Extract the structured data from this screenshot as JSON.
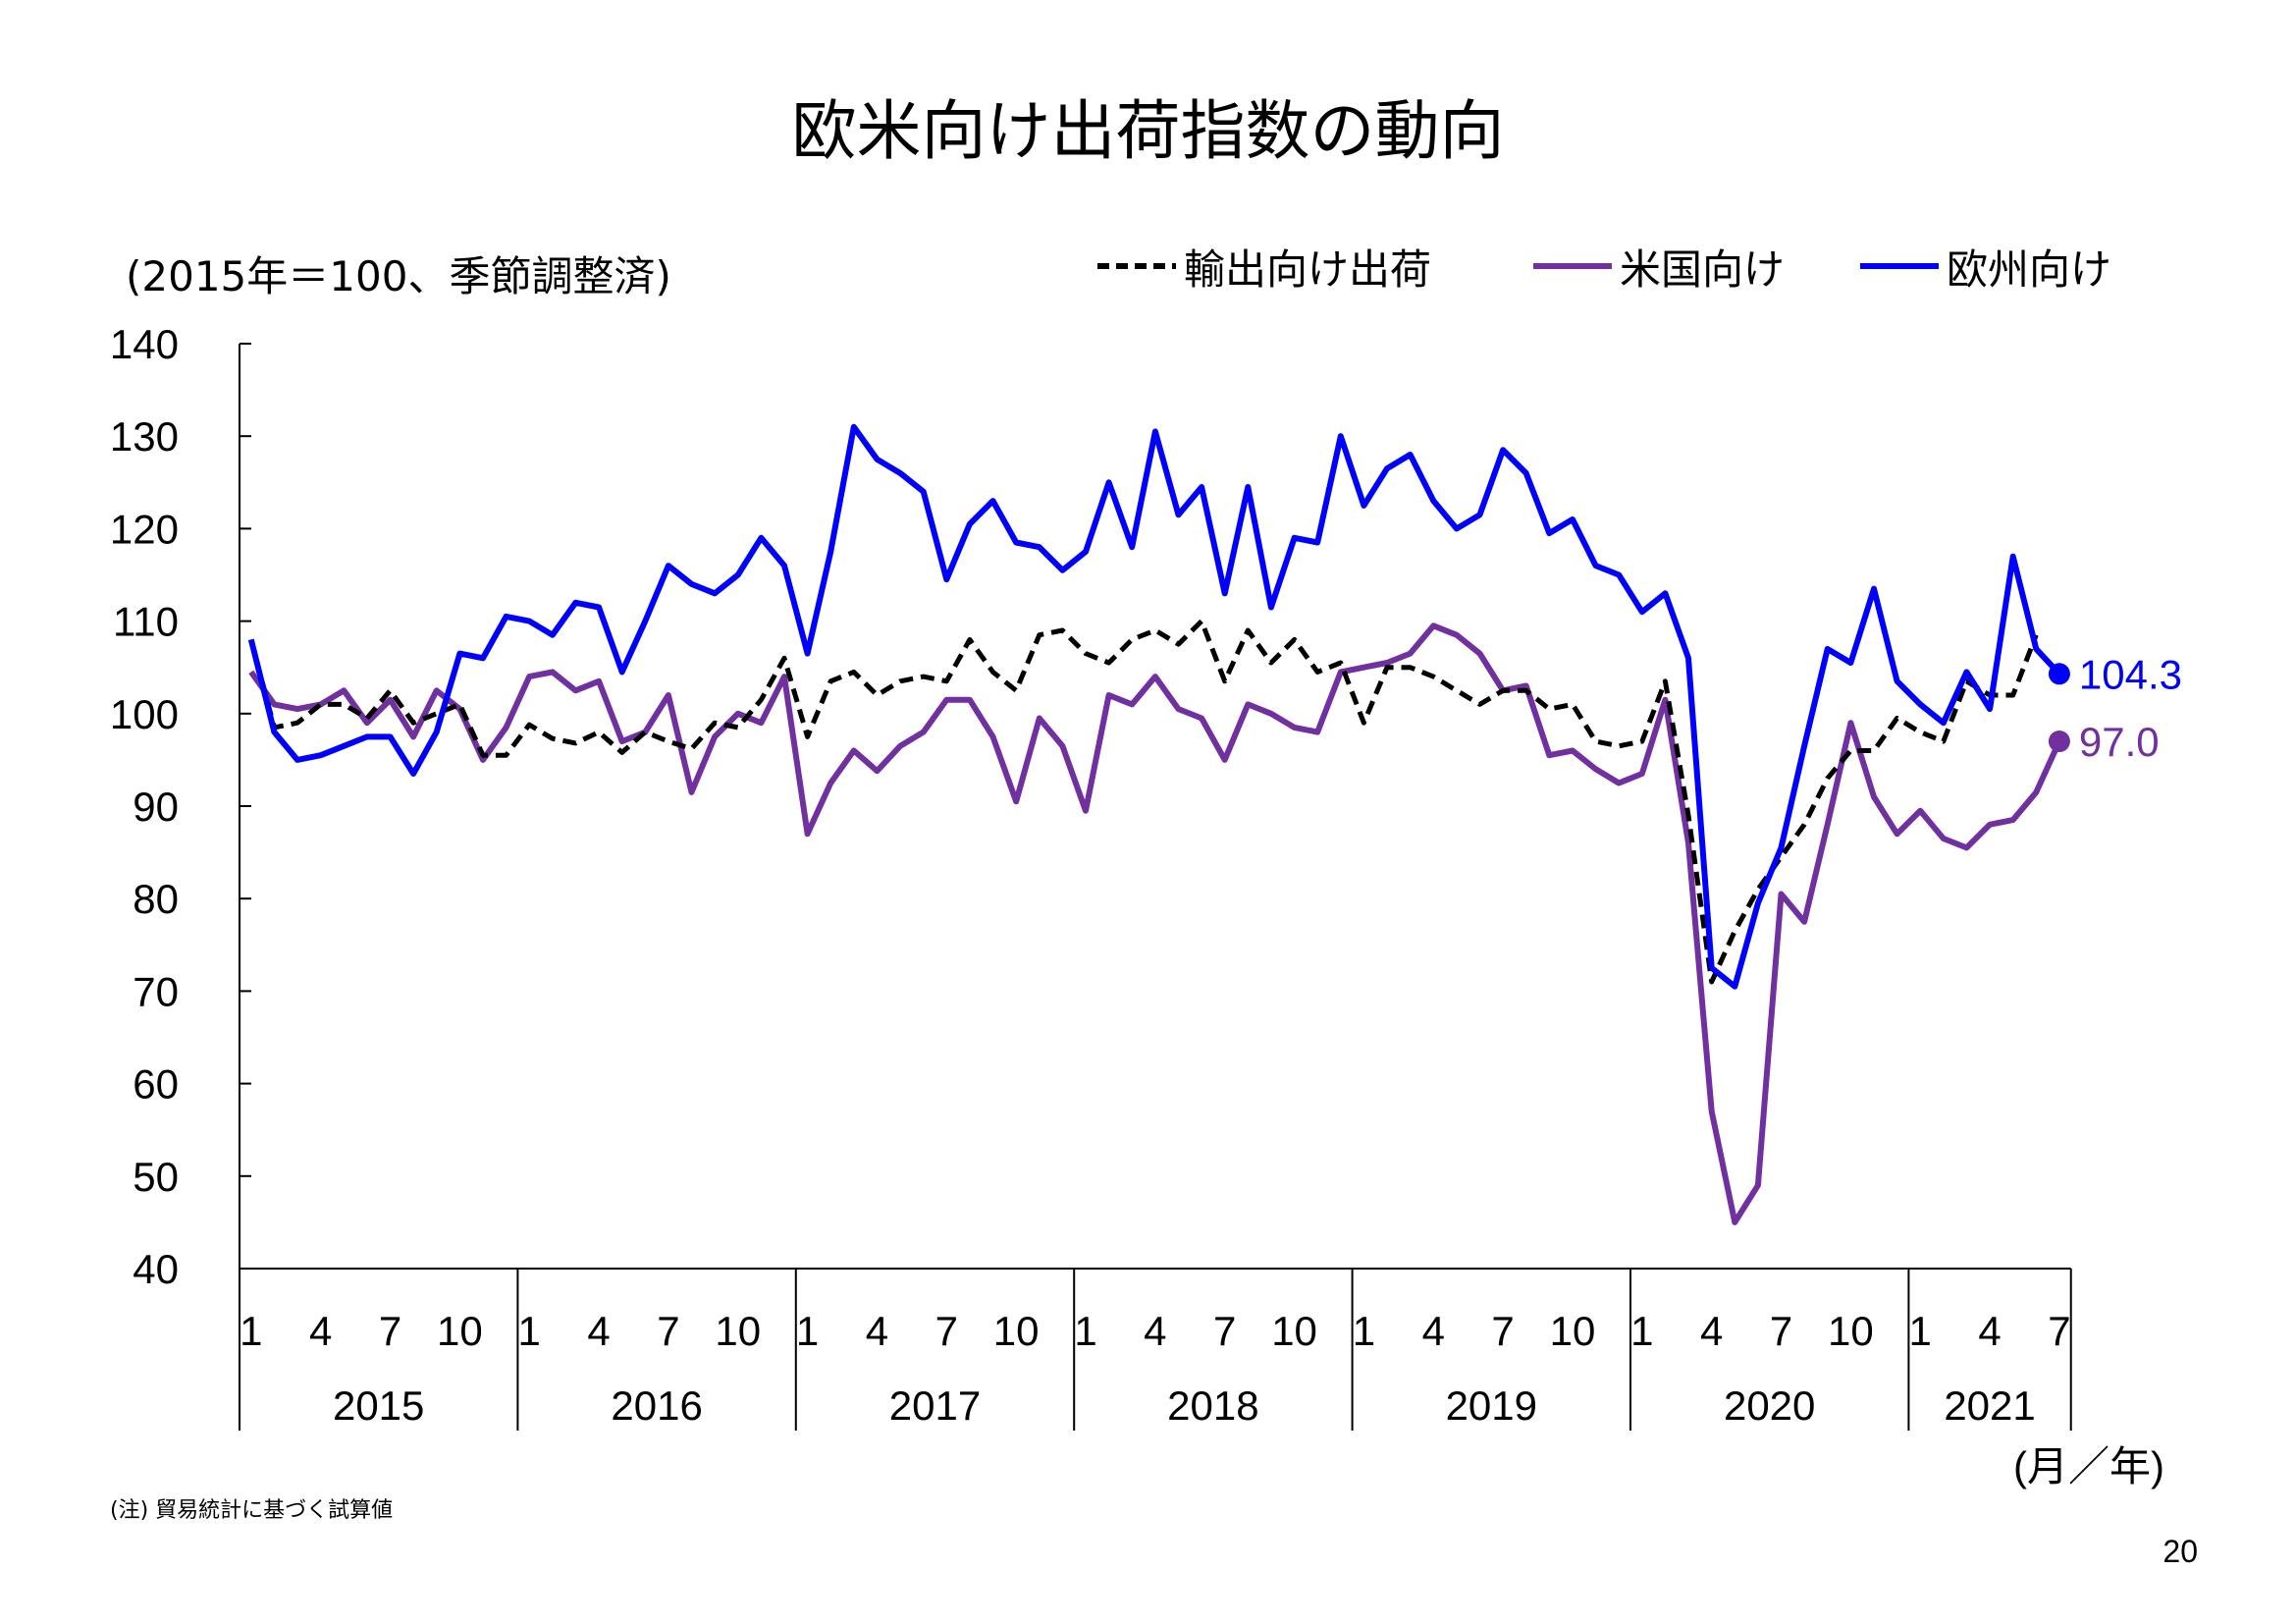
{
  "title": "欧米向け出荷指数の動向",
  "unit_note": "(2015年＝100、季節調整済)",
  "footnote": "(注) 貿易統計に基づく試算値",
  "page_number": "20",
  "chart_data": {
    "type": "line",
    "ylim": [
      40,
      140
    ],
    "yticks": [
      "40",
      "50",
      "60",
      "70",
      "80",
      "90",
      "100",
      "110",
      "120",
      "130",
      "140"
    ],
    "x_month_ticks": [
      "1",
      "4",
      "7",
      "10"
    ],
    "years": [
      "2015",
      "2016",
      "2017",
      "2018",
      "2019",
      "2020",
      "2021"
    ],
    "last_year_month_ticks": [
      "1",
      "4",
      "7"
    ],
    "x_unit_label": "(月／年)",
    "series": [
      {
        "name": "輸出向け出荷",
        "color": "#000000",
        "style": "dashed",
        "values": [
          108,
          98.5,
          99,
          101,
          101,
          99.5,
          102.5,
          99,
          100,
          101,
          95.5,
          95.5,
          98.8,
          97.3,
          96.8,
          98,
          95.8,
          98,
          97,
          96.2,
          99,
          98.5,
          101.5,
          106,
          97.5,
          103.5,
          104.5,
          102,
          103.5,
          104,
          103.5,
          108,
          104.5,
          102.5,
          108.5,
          109,
          106.5,
          105.5,
          108,
          109,
          107.5,
          110,
          103.5,
          109,
          105.5,
          108,
          104.5,
          105.5,
          99,
          105,
          105,
          104,
          102.5,
          101,
          102.5,
          102.5,
          100.5,
          101,
          97,
          96.5,
          97,
          103.5,
          89,
          71,
          76.5,
          81,
          84.5,
          88,
          93,
          96,
          96,
          99.5,
          98,
          97,
          103.5,
          102,
          102,
          108.5
        ]
      },
      {
        "name": "米国向け",
        "color": "#7030A0",
        "style": "solid",
        "values": [
          104.5,
          101,
          100.5,
          101,
          102.5,
          99,
          101.5,
          97.5,
          102.5,
          100.5,
          95,
          98.5,
          104,
          104.5,
          102.5,
          103.5,
          97,
          98,
          102,
          91.5,
          97.5,
          100,
          99,
          104,
          87,
          92.5,
          96,
          93.8,
          96.5,
          98,
          101.5,
          101.5,
          97.5,
          90.5,
          99.5,
          96.5,
          89.5,
          102,
          101,
          104,
          100.5,
          99.5,
          95,
          101,
          100,
          98.5,
          98,
          104.5,
          105,
          105.5,
          106.5,
          109.5,
          108.5,
          106.5,
          102.5,
          103,
          95.5,
          96,
          94,
          92.5,
          93.5,
          101.5,
          86,
          57,
          45,
          49,
          80.5,
          77.5,
          88,
          99,
          91,
          87,
          89.5,
          86.5,
          85.5,
          88,
          88.5,
          91.5,
          97.0
        ],
        "end_label": "97.0"
      },
      {
        "name": "欧州向け",
        "color": "#0000FF",
        "style": "solid",
        "values": [
          108,
          98,
          95,
          95.5,
          96.5,
          97.5,
          97.5,
          93.5,
          98,
          106.5,
          106,
          110.5,
          110,
          108.5,
          112,
          111.5,
          104.5,
          110,
          116,
          114,
          113,
          115,
          119,
          116,
          106.5,
          117.5,
          131,
          127.5,
          126,
          124,
          114.5,
          120.5,
          123,
          118.5,
          118,
          115.5,
          117.5,
          125,
          118,
          130.5,
          121.5,
          124.5,
          113,
          124.5,
          111.5,
          119,
          118.5,
          130,
          122.5,
          126.5,
          128,
          123,
          120,
          121.5,
          128.5,
          126,
          119.5,
          121,
          116,
          115,
          111,
          113,
          106,
          72.5,
          70.5,
          79.5,
          85.5,
          96.5,
          107,
          105.5,
          113.5,
          103.5,
          101,
          99,
          104.5,
          100.5,
          117,
          107,
          104.3
        ],
        "end_label": "104.3"
      }
    ]
  }
}
